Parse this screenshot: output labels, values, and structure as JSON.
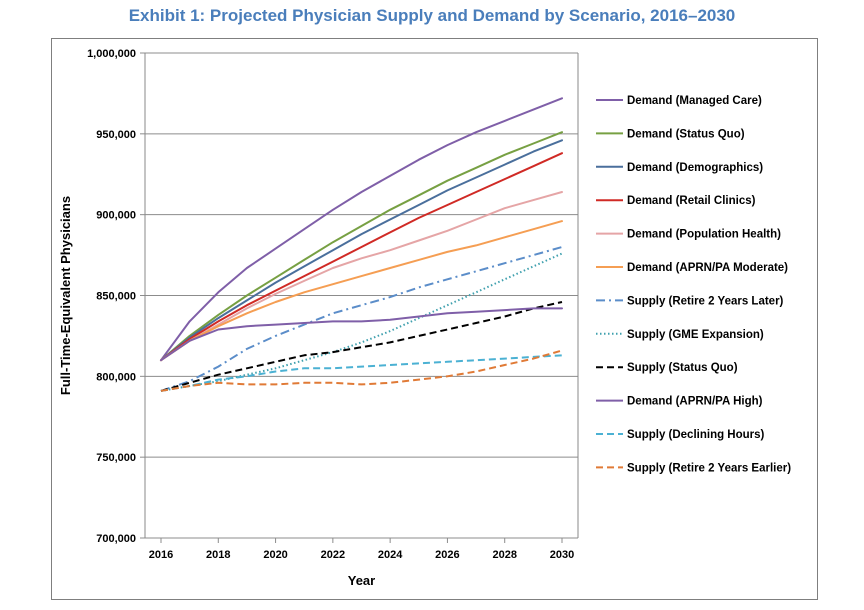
{
  "chart_data": {
    "type": "line",
    "title": "Exhibit 1: Projected Physician Supply and Demand by Scenario, 2016–2030",
    "xlabel": "Year",
    "ylabel": "Full-Time-Equivalent Physicians",
    "xlim": [
      2016,
      2030
    ],
    "ylim": [
      700000,
      1000000
    ],
    "x_ticks": [
      2016,
      2018,
      2020,
      2022,
      2024,
      2026,
      2028,
      2030
    ],
    "x_tick_labels": [
      "2016",
      "2018",
      "2020",
      "2022",
      "2024",
      "2026",
      "2028",
      "2030"
    ],
    "y_ticks": [
      700000,
      750000,
      800000,
      850000,
      900000,
      950000,
      1000000
    ],
    "y_tick_labels": [
      "700,000",
      "750,000",
      "800,000",
      "850,000",
      "900,000",
      "950,000",
      "1,000,000"
    ],
    "grid": true,
    "legend_position": "right",
    "x": [
      2016,
      2017,
      2018,
      2019,
      2020,
      2021,
      2022,
      2023,
      2024,
      2025,
      2026,
      2027,
      2028,
      2029,
      2030
    ],
    "series": [
      {
        "name": "Demand (Managed Care)",
        "color": "#7f5fa8",
        "dash": "solid",
        "values": [
          810000,
          834000,
          852000,
          867000,
          879000,
          891000,
          903000,
          914000,
          924000,
          934000,
          943000,
          951000,
          958000,
          965000,
          972000
        ]
      },
      {
        "name": "Demand (Status Quo)",
        "color": "#77a043",
        "dash": "solid",
        "values": [
          810000,
          825000,
          838000,
          850000,
          861000,
          872000,
          883000,
          893000,
          903000,
          912000,
          921000,
          929000,
          937000,
          944000,
          951000
        ]
      },
      {
        "name": "Demand (Demographics)",
        "color": "#4a6f9c",
        "dash": "solid",
        "values": [
          810000,
          824000,
          836000,
          847000,
          858000,
          868000,
          878000,
          888000,
          897000,
          906000,
          915000,
          923000,
          931000,
          939000,
          946000
        ]
      },
      {
        "name": "Demand (Retail Clinics)",
        "color": "#d02a25",
        "dash": "solid",
        "values": [
          810000,
          823000,
          834000,
          844000,
          853000,
          862000,
          871000,
          880000,
          889000,
          898000,
          906000,
          914000,
          922000,
          930000,
          938000
        ]
      },
      {
        "name": "Demand (Population Health)",
        "color": "#e5a5a6",
        "dash": "solid",
        "values": [
          810000,
          822000,
          832000,
          842000,
          851000,
          859000,
          867000,
          873000,
          878000,
          884000,
          890000,
          897000,
          904000,
          909000,
          914000
        ]
      },
      {
        "name": "Demand (APRN/PA Moderate)",
        "color": "#f59e53",
        "dash": "solid",
        "values": [
          810000,
          822000,
          831000,
          839000,
          846000,
          852000,
          857000,
          862000,
          867000,
          872000,
          877000,
          881000,
          886000,
          891000,
          896000
        ]
      },
      {
        "name": "Supply (Retire 2 Years Later)",
        "color": "#5b8dc9",
        "dash": "dashdot",
        "values": [
          791000,
          797000,
          806000,
          817000,
          825000,
          832000,
          839000,
          844000,
          849000,
          855000,
          860000,
          865000,
          870000,
          875000,
          880000
        ]
      },
      {
        "name": "Supply (GME Expansion)",
        "color": "#3fa0ae",
        "dash": "dotted",
        "values": [
          791000,
          794000,
          797000,
          801000,
          805000,
          810000,
          815000,
          821000,
          828000,
          836000,
          844000,
          852000,
          860000,
          868000,
          876000
        ]
      },
      {
        "name": "Supply (Status Quo)",
        "color": "#000000",
        "dash": "dashed",
        "values": [
          791000,
          796000,
          801000,
          805000,
          809000,
          813000,
          815000,
          818000,
          821000,
          825000,
          829000,
          833000,
          837000,
          842000,
          846000
        ]
      },
      {
        "name": "Demand (APRN/PA High)",
        "color": "#7f5fa8",
        "dash": "solid",
        "values": [
          810000,
          822000,
          829000,
          831000,
          832000,
          833000,
          834000,
          834000,
          835000,
          837000,
          839000,
          840000,
          841000,
          842000,
          842000
        ]
      },
      {
        "name": "Supply (Declining Hours)",
        "color": "#4bb1d3",
        "dash": "dashed",
        "values": [
          791000,
          794000,
          798000,
          800000,
          803000,
          805000,
          805000,
          806000,
          807000,
          808000,
          809000,
          810000,
          811000,
          812000,
          813000
        ]
      },
      {
        "name": "Supply (Retire 2 Years Earlier)",
        "color": "#e07a36",
        "dash": "dashed",
        "values": [
          791000,
          794000,
          796000,
          795000,
          795000,
          796000,
          796000,
          795000,
          796000,
          798000,
          800000,
          803000,
          807000,
          811000,
          816000
        ]
      }
    ]
  }
}
